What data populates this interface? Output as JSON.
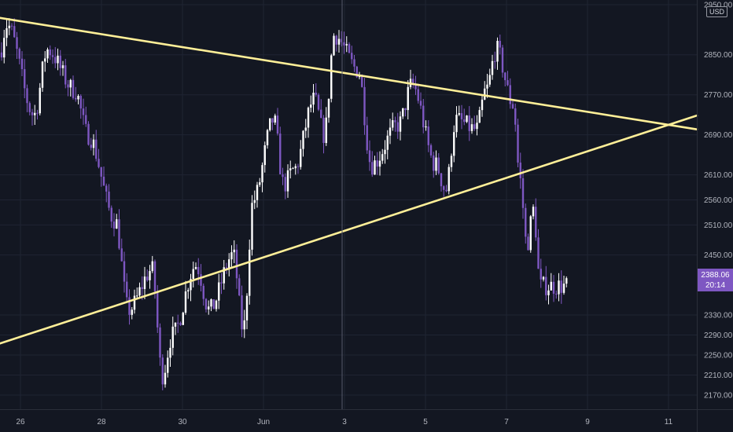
{
  "chart_data": {
    "type": "candlestick",
    "currency": "USD",
    "y_axis": {
      "ticks": [
        2170,
        2210,
        2250,
        2290,
        2330,
        2450,
        2510,
        2560,
        2610,
        2690,
        2770,
        2850,
        2950
      ],
      "tick_labels": [
        "2170.00",
        "2210.00",
        "2250.00",
        "2290.00",
        "2330.00",
        "2450.00",
        "2510.00",
        "2560.00",
        "2610.00",
        "2690.00",
        "2770.00",
        "2850.00",
        "2950.00"
      ],
      "position": "right"
    },
    "x_axis": {
      "tick_labels": [
        "26",
        "28",
        "30",
        "Jun",
        "3",
        "5",
        "7",
        "9",
        "11"
      ]
    },
    "last_price": "2388.06",
    "countdown": "20:14",
    "colors": {
      "background": "#131722",
      "up_candle": "#ffffff",
      "down_candle": "#7e57c2",
      "trendline": "#ffef98",
      "price_label": "#7e57c2"
    },
    "trendlines": [
      {
        "name": "upper-resistance",
        "from": [
          "May 25",
          2930
        ],
        "to": [
          "Jun 11",
          2710
        ]
      },
      {
        "name": "lower-support",
        "from": [
          "May 25",
          2260
        ],
        "to": [
          "Jun 11",
          2710
        ]
      }
    ],
    "swing_points": [
      [
        "May 25",
        2380
      ],
      [
        "May 25",
        2610
      ],
      [
        "May 26",
        2780
      ],
      [
        "May 26",
        2910
      ],
      [
        "May 27",
        2730
      ],
      [
        "May 27",
        2860
      ],
      [
        "May 28",
        2780
      ],
      [
        "May 28",
        2690
      ],
      [
        "May 29",
        2520
      ],
      [
        "May 29",
        2340
      ],
      [
        "May 30",
        2420
      ],
      [
        "May 30",
        2210
      ],
      [
        "May 30",
        2290
      ],
      [
        "May 31",
        2430
      ],
      [
        "May 31",
        2340
      ],
      [
        "Jun 1",
        2450
      ],
      [
        "Jun 1",
        2300
      ],
      [
        "Jun 1",
        2560
      ],
      [
        "Jun 2",
        2720
      ],
      [
        "Jun 2",
        2590
      ],
      [
        "Jun 2",
        2620
      ],
      [
        "Jun 3",
        2760
      ],
      [
        "Jun 3",
        2690
      ],
      [
        "Jun 3",
        2890
      ],
      [
        "Jun 4",
        2820
      ],
      [
        "Jun 4",
        2630
      ],
      [
        "Jun 5",
        2710
      ],
      [
        "Jun 5",
        2790
      ],
      [
        "Jun 6",
        2630
      ],
      [
        "Jun 6",
        2580
      ],
      [
        "Jun 6",
        2720
      ],
      [
        "Jun 7",
        2700
      ],
      [
        "Jun 7",
        2780
      ],
      [
        "Jun 7",
        2860
      ],
      [
        "Jun 8",
        2750
      ],
      [
        "Jun 8",
        2600
      ],
      [
        "Jun 8",
        2470
      ],
      [
        "Jun 8",
        2540
      ],
      [
        "Jun 8",
        2388
      ]
    ]
  }
}
